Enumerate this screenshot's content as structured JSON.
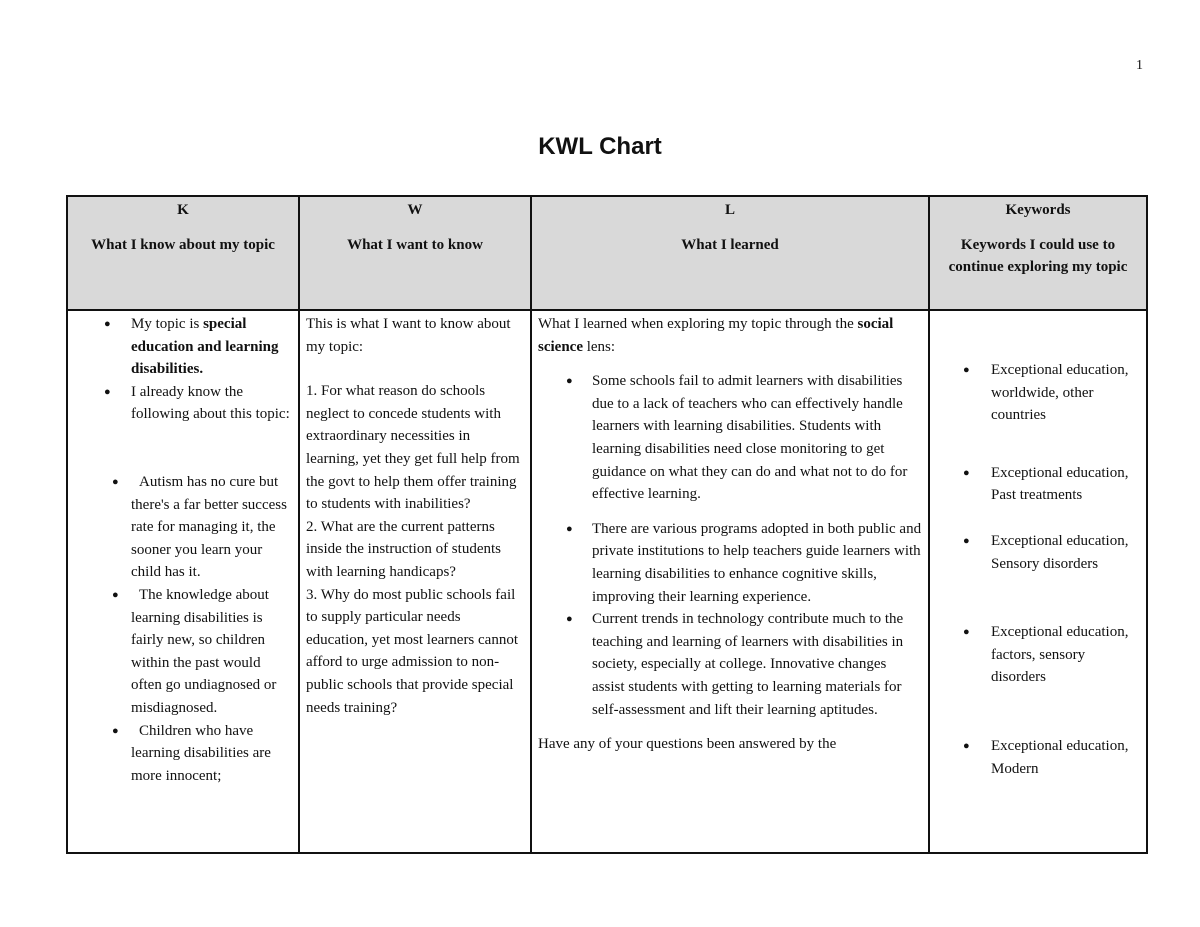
{
  "page_number": "1",
  "title": "KWL Chart",
  "headers": [
    {
      "letter": "K",
      "label": "What I know about my topic"
    },
    {
      "letter": "W",
      "label": "What I want to know"
    },
    {
      "letter": "L",
      "label": "What I learned"
    },
    {
      "letter": "Keywords",
      "label": "Keywords I could use to continue exploring my topic"
    }
  ],
  "k": {
    "item1_prefix": "My topic is ",
    "item1_bold": "special education and learning disabilities.",
    "item2": "I already know the following about this topic:",
    "item3": "Autism has no cure but there's a far better success rate for managing it, the sooner you learn your child has it.",
    "item4": "The knowledge about learning disabilities is fairly new, so children within the past would often go undiagnosed or misdiagnosed.",
    "item5": "Children who have learning disabilities are more innocent;"
  },
  "w": {
    "intro": "This is what I want to know about my topic:",
    "q1": "1. For what reason do schools neglect to concede students with extraordinary necessities in learning, yet they get full help from the govt to help them offer training to students with inabilities?",
    "q2": "2. What are the current patterns inside the instruction of students with learning handicaps?",
    "q3": "3. Why do most public schools fail to supply particular needs education, yet most learners cannot afford to urge admission to non-public schools that provide special needs training?"
  },
  "l": {
    "intro_prefix": "What I learned when exploring my topic through the ",
    "intro_bold": "social science",
    "intro_suffix": " lens:",
    "items": [
      "Some schools fail to admit learners with disabilities due to a lack of teachers who can effectively handle learners with learning disabilities. Students with learning disabilities need close monitoring to get guidance on what they can do and what not to do for effective learning.",
      "There are various programs adopted in both public and private institutions to help teachers guide learners with learning disabilities to enhance cognitive skills, improving their learning experience.",
      "Current trends in technology contribute much to the teaching and learning of learners with disabilities in society, especially at college. Innovative changes assist students with getting to learning materials for self-assessment and lift their learning aptitudes."
    ],
    "closing": "Have any of your questions been answered by the"
  },
  "keywords": [
    "Exceptional education, worldwide, other countries",
    "Exceptional education, Past treatments",
    "Exceptional education, Sensory disorders",
    "Exceptional education, factors, sensory disorders",
    "Exceptional education, Modern"
  ]
}
